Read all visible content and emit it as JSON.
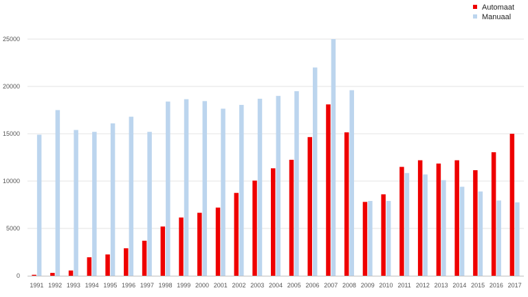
{
  "chart_data": {
    "type": "bar",
    "title": "",
    "xlabel": "",
    "ylabel": "",
    "ylim": [
      0,
      25000
    ],
    "yticks": [
      "0",
      "5000",
      "10000",
      "15000",
      "20000",
      "25000"
    ],
    "ytick_values": [
      0,
      5000,
      10000,
      15000,
      20000,
      25000
    ],
    "grid": true,
    "legend_position": "top-right",
    "categories": [
      "1991",
      "1992",
      "1993",
      "1994",
      "1995",
      "1996",
      "1997",
      "1998",
      "1999",
      "2000",
      "2001",
      "2002",
      "2003",
      "2004",
      "2005",
      "2006",
      "2007",
      "2008",
      "2009",
      "2010",
      "2011",
      "2012",
      "2013",
      "2014",
      "2015",
      "2016",
      "2017"
    ],
    "series": [
      {
        "name": "Automaat",
        "color": "#ee0000",
        "values": [
          100,
          300,
          550,
          1950,
          2250,
          2900,
          3700,
          5200,
          6150,
          6650,
          7200,
          8750,
          10050,
          11350,
          12250,
          14650,
          18100,
          15150,
          7800,
          8600,
          11500,
          12200,
          11850,
          12200,
          11150,
          13050,
          15000
        ]
      },
      {
        "name": "Manuaal",
        "color": "#bcd5ee",
        "values": [
          14900,
          17500,
          15400,
          15200,
          16100,
          16800,
          15200,
          18400,
          18650,
          18450,
          17650,
          18050,
          18700,
          19000,
          19500,
          22000,
          25000,
          19600,
          7900,
          7900,
          10850,
          10700,
          10100,
          9400,
          8900,
          7950,
          7750
        ]
      }
    ]
  }
}
